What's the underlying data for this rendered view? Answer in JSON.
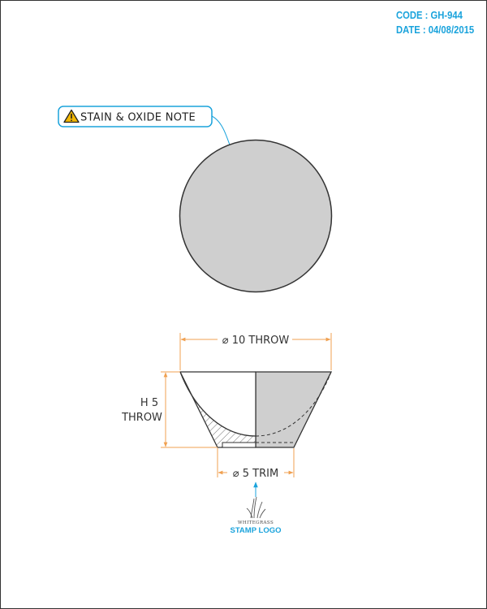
{
  "meta": {
    "code": "CODE : GH-944",
    "date": "DATE : 04/08/2015"
  },
  "callout": {
    "warning_icon": "warning-triangle-icon",
    "text": "STAIN & OXIDE NOTE"
  },
  "dimensions": {
    "diameter_top": "⌀ 10 THROW",
    "height_line1": "H 5",
    "height_line2": "THROW",
    "diameter_bottom": "⌀ 5 TRIM"
  },
  "stamp": {
    "mark_text": "WHITEGRASS",
    "label": "STAMP LOGO"
  },
  "colors": {
    "accent_blue": "#1aa3dc",
    "dimension_orange": "#f0a050",
    "fill_gray": "#cfcfcf",
    "stroke": "#333333"
  }
}
